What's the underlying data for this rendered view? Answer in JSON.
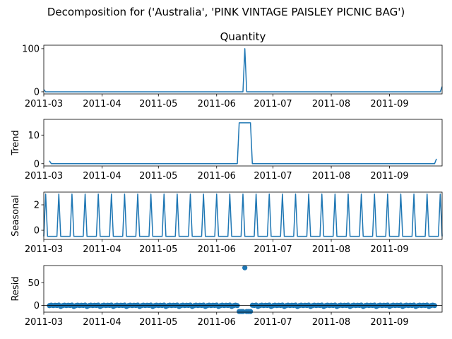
{
  "figure": {
    "suptitle": "Decomposition for ('Australia', 'PINK VINTAGE PAISLEY PICNIC BAG')"
  },
  "chart_data": [
    {
      "type": "line",
      "title": "Quantity",
      "ylabel": "",
      "xlim": [
        "2011-03-01",
        "2011-09-29"
      ],
      "ylim": [
        -5,
        108
      ],
      "yticks": [
        0,
        100
      ],
      "xticks": [
        "2011-03",
        "2011-04",
        "2011-05",
        "2011-06",
        "2011-07",
        "2011-08",
        "2011-09"
      ],
      "grid": false,
      "color": "#1f77b4",
      "series": [
        {
          "points": [
            [
              "2011-03-01",
              5
            ],
            [
              "2011-03-02",
              0
            ],
            [
              "2011-06-15",
              0
            ],
            [
              "2011-06-16",
              100
            ],
            [
              "2011-06-17",
              0
            ],
            [
              "2011-09-28",
              0
            ],
            [
              "2011-09-29",
              12
            ]
          ]
        }
      ]
    },
    {
      "type": "line",
      "title": "",
      "ylabel": "Trend",
      "xlim": [
        "2011-03-01",
        "2011-09-29"
      ],
      "ylim": [
        -0.8,
        15.5
      ],
      "yticks": [
        0,
        10
      ],
      "xticks": [
        "2011-03",
        "2011-04",
        "2011-05",
        "2011-06",
        "2011-07",
        "2011-08",
        "2011-09"
      ],
      "grid": false,
      "color": "#1f77b4",
      "series": [
        {
          "points": [
            [
              "2011-03-04",
              1.0
            ],
            [
              "2011-03-05",
              0
            ],
            [
              "2011-06-12",
              0
            ],
            [
              "2011-06-13",
              14.3
            ],
            [
              "2011-06-19",
              14.3
            ],
            [
              "2011-06-20",
              0
            ],
            [
              "2011-09-25",
              0
            ],
            [
              "2011-09-26",
              1.7
            ]
          ]
        }
      ]
    },
    {
      "type": "line",
      "title": "",
      "ylabel": "Seasonal",
      "xlim": [
        "2011-03-01",
        "2011-09-29"
      ],
      "ylim": [
        -0.72,
        3.0
      ],
      "yticks": [
        0,
        2
      ],
      "xticks": [
        "2011-03",
        "2011-04",
        "2011-05",
        "2011-06",
        "2011-07",
        "2011-08",
        "2011-09"
      ],
      "grid": false,
      "color": "#1f77b4",
      "period_days": 7,
      "first_peak": "2011-03-02",
      "peak": 2.85,
      "baseline": -0.48
    },
    {
      "type": "scatter",
      "title": "",
      "ylabel": "Resid",
      "xlim": [
        "2011-03-01",
        "2011-09-29"
      ],
      "ylim": [
        -15,
        88
      ],
      "yticks": [
        0,
        50
      ],
      "xticks": [
        "2011-03",
        "2011-04",
        "2011-05",
        "2011-06",
        "2011-07",
        "2011-08",
        "2011-09"
      ],
      "grid": false,
      "color": "#1f77b4",
      "start": "2011-03-04",
      "end": "2011-09-25",
      "normal_values": [
        -0.6,
        0.4,
        -0.5,
        0.2,
        -0.2,
        0.6,
        -2.4
      ],
      "anomaly_start": "2011-06-13",
      "anomaly_end": "2011-06-19",
      "anomaly_value": -13.5,
      "outlier": [
        "2011-06-16",
        83
      ]
    }
  ]
}
